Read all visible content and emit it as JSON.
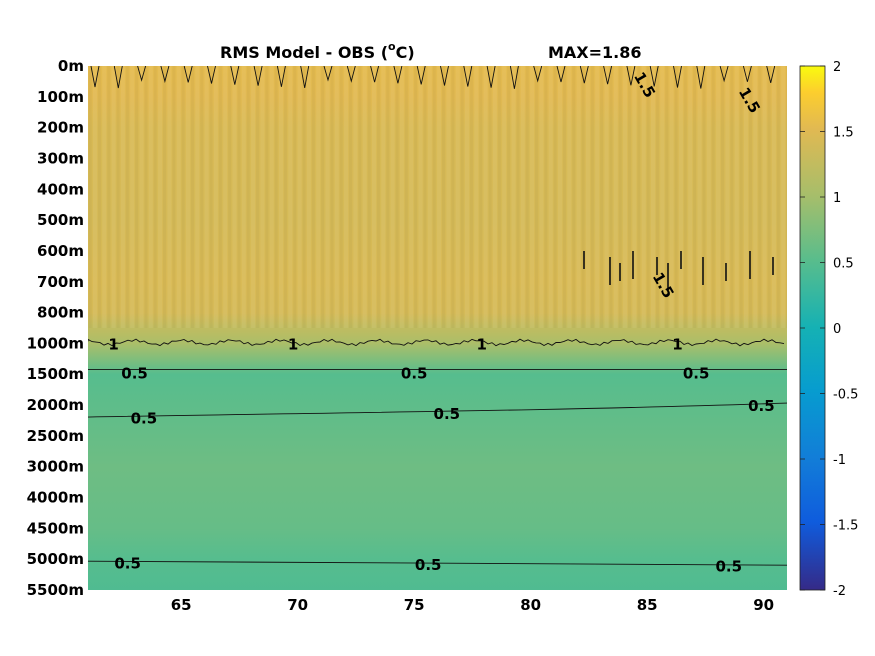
{
  "chart_data": {
    "type": "heatmap",
    "title_prefix": "RMS Model - OBS (",
    "title_unit_super": "o",
    "title_unit_suffix": "C)",
    "max_label": "MAX=1.86",
    "x": {
      "range": [
        61,
        91
      ],
      "ticks": [
        65,
        70,
        75,
        80,
        85,
        90
      ]
    },
    "y": {
      "scale": "categorical-depth",
      "ticks": [
        "0m",
        "100m",
        "200m",
        "300m",
        "400m",
        "500m",
        "600m",
        "700m",
        "800m",
        "1000m",
        "1500m",
        "2000m",
        "2500m",
        "3000m",
        "4000m",
        "4500m",
        "5000m",
        "5500m"
      ]
    },
    "colorbar": {
      "range": [
        -2,
        2
      ],
      "ticks": [
        "2",
        "1.5",
        "1",
        "0.5",
        "0",
        "-0.5",
        "-1",
        "-1.5",
        "-2"
      ],
      "colormap": "parula"
    },
    "field_by_depth": [
      {
        "depth": "0m",
        "value": 1.55
      },
      {
        "depth": "100m",
        "value": 1.52
      },
      {
        "depth": "200m",
        "value": 1.45
      },
      {
        "depth": "500m",
        "value": 1.42
      },
      {
        "depth": "700m",
        "value": 1.45
      },
      {
        "depth": "800m",
        "value": 1.42
      },
      {
        "depth": "1000m",
        "value": 1.05
      },
      {
        "depth": "1500m",
        "value": 0.5
      },
      {
        "depth": "2000m",
        "value": 0.55
      },
      {
        "depth": "3000m",
        "value": 0.65
      },
      {
        "depth": "4500m",
        "value": 0.6
      },
      {
        "depth": "5000m",
        "value": 0.5
      },
      {
        "depth": "5500m",
        "value": 0.45
      }
    ],
    "contour_labels": [
      {
        "text": "1.5",
        "x": 84.7,
        "depth_index": 0.5,
        "rotate": 60
      },
      {
        "text": "1.5",
        "x": 89.2,
        "depth_index": 1.0,
        "rotate": 60
      },
      {
        "text": "1.5",
        "x": 85.5,
        "depth_index": 7.0,
        "rotate": 60
      },
      {
        "text": "1",
        "x": 62.1,
        "depth_index": 9.0,
        "rotate": 0
      },
      {
        "text": "1",
        "x": 69.8,
        "depth_index": 9.0,
        "rotate": 0
      },
      {
        "text": "1",
        "x": 77.9,
        "depth_index": 9.0,
        "rotate": 0
      },
      {
        "text": "1",
        "x": 86.3,
        "depth_index": 9.0,
        "rotate": 0
      },
      {
        "text": "0.5",
        "x": 63.0,
        "depth_index": 9.95,
        "rotate": 0
      },
      {
        "text": "0.5",
        "x": 75.0,
        "depth_index": 9.95,
        "rotate": 0
      },
      {
        "text": "0.5",
        "x": 87.1,
        "depth_index": 9.95,
        "rotate": 0
      },
      {
        "text": "0.5",
        "x": 63.4,
        "depth_index": 11.4,
        "rotate": 0
      },
      {
        "text": "0.5",
        "x": 76.4,
        "depth_index": 11.25,
        "rotate": 0
      },
      {
        "text": "0.5",
        "x": 89.9,
        "depth_index": 11.0,
        "rotate": 0
      },
      {
        "text": "0.5",
        "x": 62.7,
        "depth_index": 16.1,
        "rotate": 0
      },
      {
        "text": "0.5",
        "x": 75.6,
        "depth_index": 16.15,
        "rotate": 0
      },
      {
        "text": "0.5",
        "x": 88.5,
        "depth_index": 16.2,
        "rotate": 0
      }
    ]
  }
}
